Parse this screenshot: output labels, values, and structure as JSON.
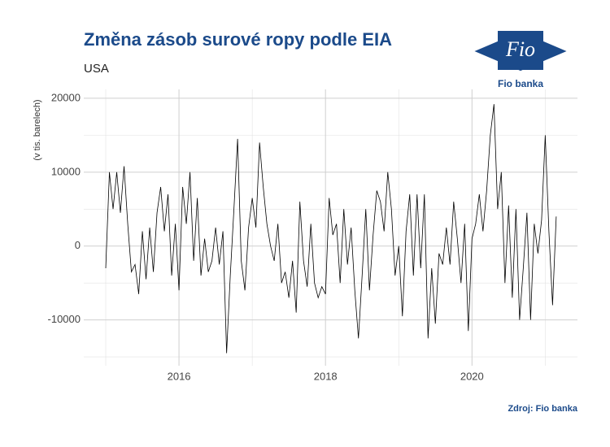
{
  "chart_data": {
    "type": "line",
    "title": "Změna zásob surové ropy podle EIA",
    "subtitle": "USA",
    "y_label": "(v tis. barelech)",
    "source": "Zdroj: Fio banka",
    "color": "#000000",
    "grid": true,
    "xlim": [
      2014.7,
      2021.44
    ],
    "xticks": [
      2016,
      2018,
      2020
    ],
    "xminor": [
      2015,
      2017,
      2019,
      2021
    ],
    "ylim": [
      -16200,
      21200
    ],
    "yticks": [
      -10000,
      0,
      10000,
      20000
    ],
    "yminor": [
      -15000,
      -5000,
      5000,
      15000
    ],
    "x": [
      2015,
      2015.05,
      2015.1,
      2015.15,
      2015.2,
      2015.25,
      2015.3,
      2015.35,
      2015.4,
      2015.45,
      2015.5,
      2015.55,
      2015.6,
      2015.65,
      2015.7,
      2015.75,
      2015.8,
      2015.85,
      2015.9,
      2015.95,
      2016,
      2016.05,
      2016.1,
      2016.15,
      2016.2,
      2016.25,
      2016.3,
      2016.35,
      2016.4,
      2016.45,
      2016.5,
      2016.55,
      2016.6,
      2016.65,
      2016.7,
      2016.75,
      2016.8,
      2016.85,
      2016.9,
      2016.95,
      2017,
      2017.05,
      2017.1,
      2017.15,
      2017.2,
      2017.25,
      2017.3,
      2017.35,
      2017.4,
      2017.45,
      2017.5,
      2017.55,
      2017.6,
      2017.65,
      2017.7,
      2017.75,
      2017.8,
      2017.85,
      2017.9,
      2017.95,
      2018,
      2018.05,
      2018.1,
      2018.15,
      2018.2,
      2018.25,
      2018.3,
      2018.35,
      2018.4,
      2018.45,
      2018.5,
      2018.55,
      2018.6,
      2018.65,
      2018.7,
      2018.75,
      2018.8,
      2018.85,
      2018.9,
      2018.95,
      2019,
      2019.05,
      2019.1,
      2019.15,
      2019.2,
      2019.25,
      2019.3,
      2019.35,
      2019.4,
      2019.45,
      2019.5,
      2019.55,
      2019.6,
      2019.65,
      2019.7,
      2019.75,
      2019.8,
      2019.85,
      2019.9,
      2019.95,
      2020,
      2020.05,
      2020.1,
      2020.15,
      2020.2,
      2020.25,
      2020.3,
      2020.35,
      2020.4,
      2020.45,
      2020.5,
      2020.55,
      2020.6,
      2020.65,
      2020.7,
      2020.75,
      2020.8,
      2020.85,
      2020.9,
      2020.95,
      2021,
      2021.05,
      2021.1,
      2021.15
    ],
    "values": [
      -3000,
      10000,
      5000,
      10000,
      4500,
      10800,
      3000,
      -3500,
      -2500,
      -6500,
      2000,
      -4500,
      2500,
      -3500,
      4500,
      8000,
      2000,
      7000,
      -4000,
      3000,
      -6000,
      8000,
      3000,
      10000,
      -2000,
      6500,
      -4000,
      1000,
      -3500,
      -2000,
      2500,
      -2500,
      2000,
      -14500,
      -4000,
      5000,
      14500,
      -2000,
      -6000,
      2500,
      6500,
      2500,
      14000,
      8000,
      3000,
      0,
      -2000,
      3000,
      -5000,
      -3500,
      -7000,
      -2000,
      -9000,
      6000,
      -2000,
      -5500,
      3000,
      -5000,
      -7000,
      -5500,
      -6500,
      6500,
      1500,
      3000,
      -5000,
      5000,
      -2500,
      2500,
      -6000,
      -12500,
      -4000,
      5000,
      -6000,
      1500,
      7500,
      6000,
      2000,
      10000,
      5000,
      -4000,
      0,
      -9500,
      2000,
      7000,
      -4000,
      7000,
      -3000,
      7000,
      -12500,
      -3000,
      -10500,
      -1000,
      -2500,
      2500,
      -2500,
      6000,
      1000,
      -5000,
      3000,
      -11500,
      1000,
      3000,
      7000,
      2000,
      7500,
      15000,
      19200,
      5000,
      10000,
      -5000,
      5500,
      -7000,
      5000,
      -10000,
      -3000,
      4500,
      -10000,
      3000,
      -1000,
      3500,
      15000,
      2000,
      -8000,
      4000
    ]
  },
  "logo": {
    "mark": "Fio",
    "name": "Fio banka"
  }
}
